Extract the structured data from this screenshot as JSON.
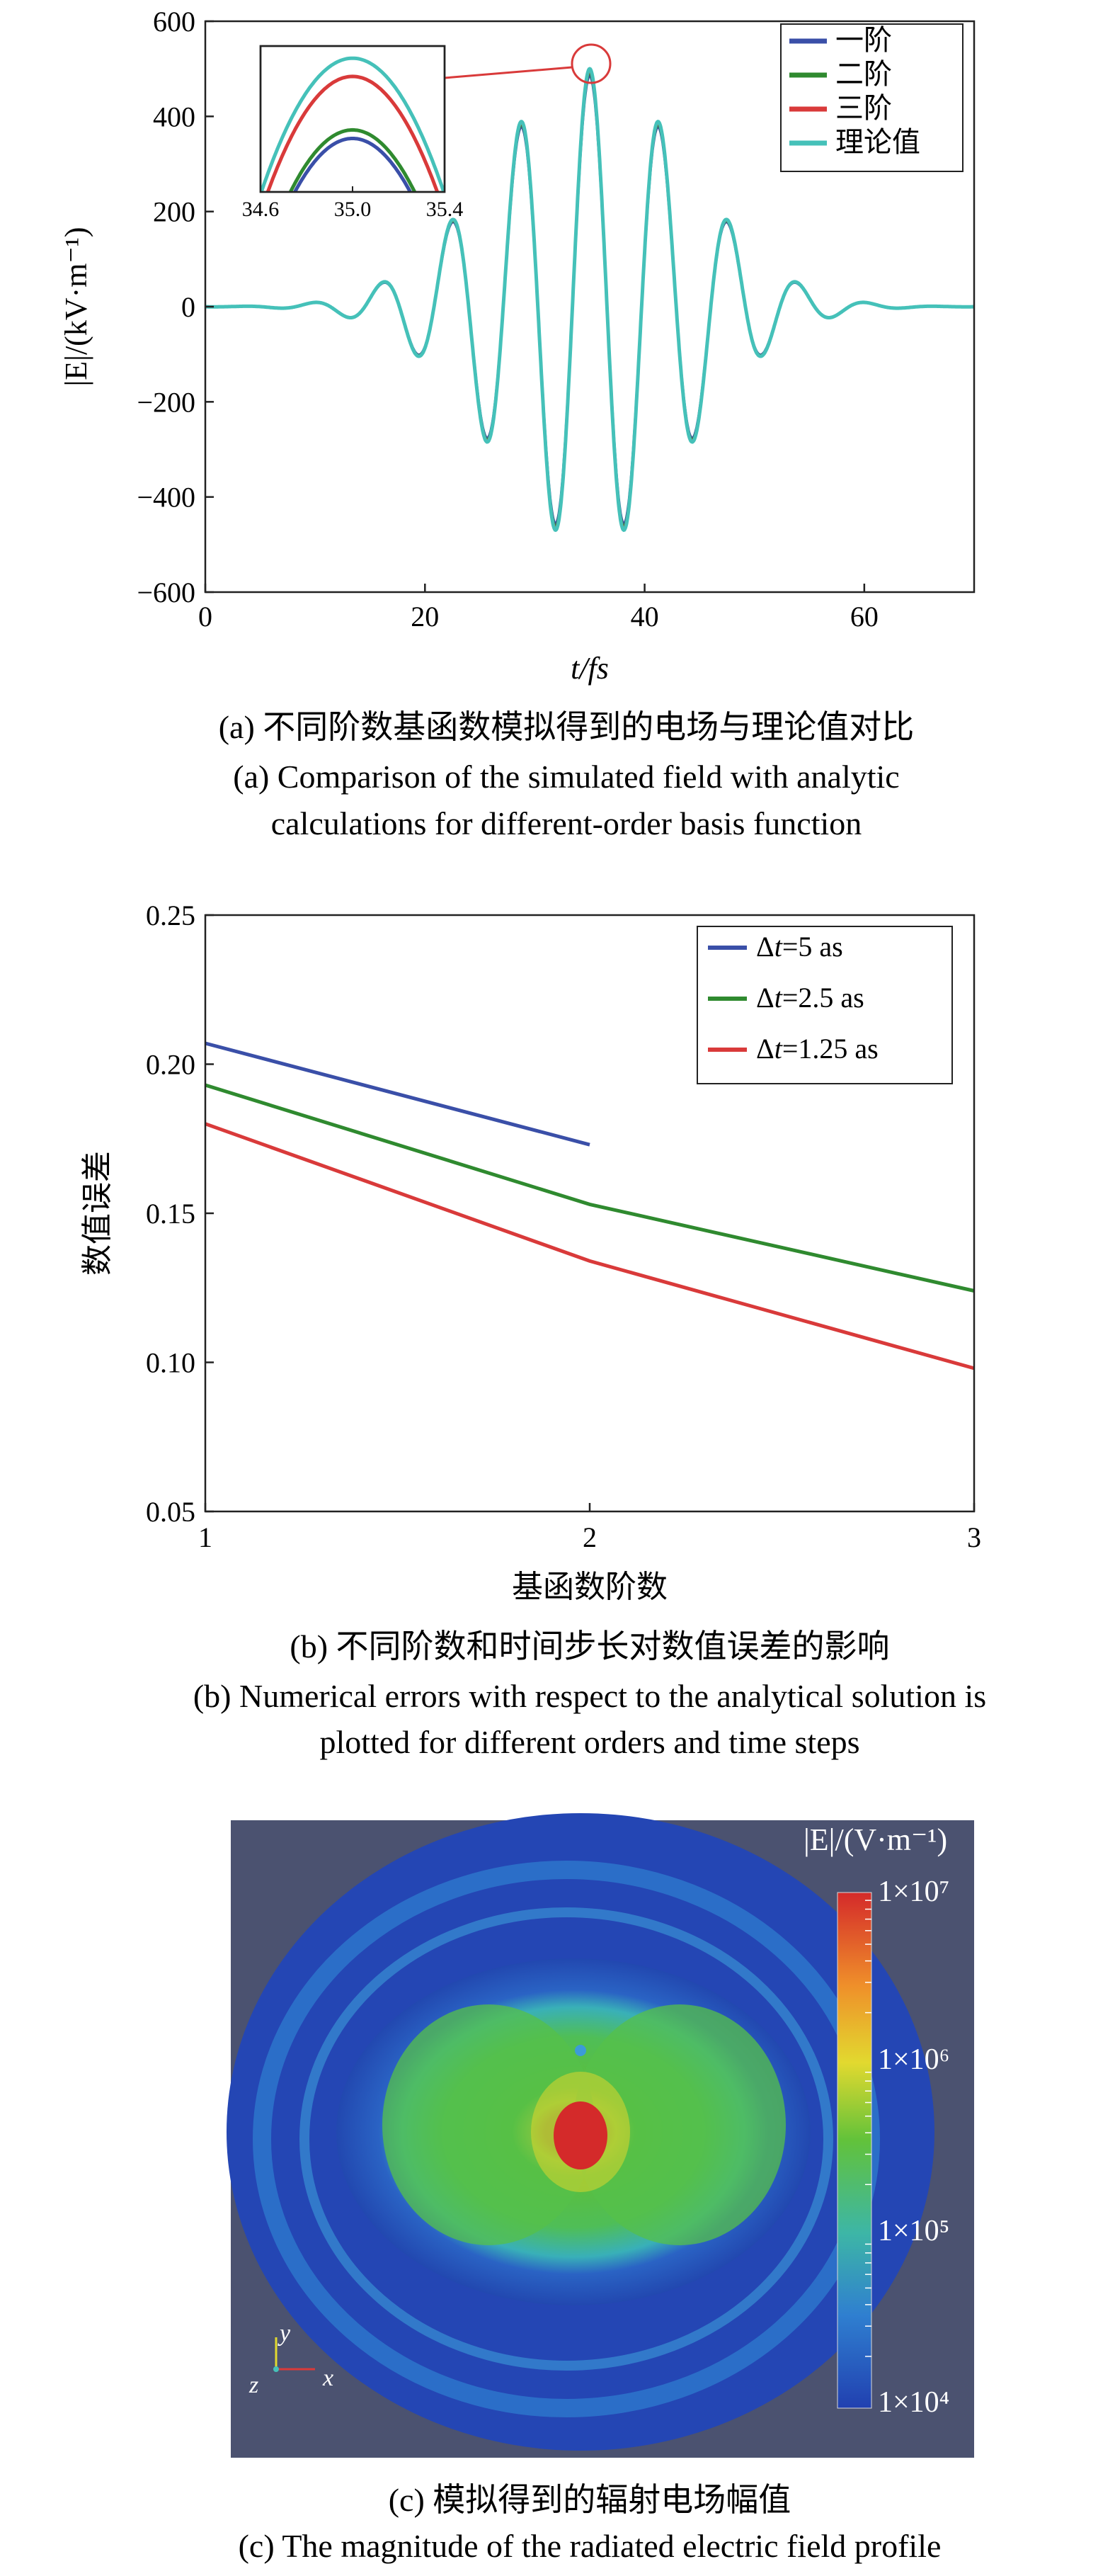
{
  "chart_data": [
    {
      "type": "line",
      "title": "",
      "xlabel": "t/fs",
      "ylabel": "|E|/(kV·m⁻¹)",
      "xlim": [
        0,
        70
      ],
      "ylim": [
        -600,
        600
      ],
      "xticks": [
        "0",
        "20",
        "40",
        "60"
      ],
      "yticks": [
        "600",
        "400",
        "200",
        "0",
        "−200",
        "−400",
        "−600"
      ],
      "legend_position": "top-right",
      "pulse": {
        "center_fs": 35.0,
        "period_fs": 6.3,
        "amplitude": 500,
        "width_fs": 12.5
      },
      "series": [
        {
          "name": "一阶",
          "color": "#3a4fa8",
          "peak_at_35": 388
        },
        {
          "name": "二阶",
          "color": "#2f8a2f",
          "peak_at_35": 402
        },
        {
          "name": "三阶",
          "color": "#d93a3a",
          "peak_at_35": 490
        },
        {
          "name": "理论值",
          "color": "#45c1b9",
          "peak_at_35": 520
        }
      ],
      "inset": {
        "xlim": [
          34.6,
          35.4
        ],
        "xticks": [
          "34.6",
          "35.0",
          "35.4"
        ]
      },
      "caption_cn": "(a) 不同阶数基函数模拟得到的电场与理论值对比",
      "caption_en_1": "(a) Comparison of the simulated field with analytic",
      "caption_en_2": "calculations for different-order basis function"
    },
    {
      "type": "line",
      "title": "",
      "xlabel": "基函数阶数",
      "ylabel": "数值误差",
      "xlim": [
        1,
        3
      ],
      "ylim": [
        0.05,
        0.25
      ],
      "xticks": [
        "1",
        "2",
        "3"
      ],
      "yticks": [
        "0.25",
        "0.20",
        "0.15",
        "0.10",
        "0.05"
      ],
      "legend_position": "top-right",
      "series": [
        {
          "name_prefix": "Δ",
          "name_var": "t",
          "name_suffix": "=5 as",
          "color": "#3a4fa8",
          "x": [
            1,
            2
          ],
          "y": [
            0.207,
            0.173
          ]
        },
        {
          "name_prefix": "Δ",
          "name_var": "t",
          "name_suffix": "=2.5 as",
          "color": "#2f8a2f",
          "x": [
            1,
            2,
            3
          ],
          "y": [
            0.193,
            0.153,
            0.124
          ]
        },
        {
          "name_prefix": "Δ",
          "name_var": "t",
          "name_suffix": "=1.25 as",
          "color": "#d93a3a",
          "x": [
            1,
            2,
            3
          ],
          "y": [
            0.18,
            0.134,
            0.098
          ]
        }
      ],
      "caption_cn": "(b) 不同阶数和时间步长对数值误差的影响",
      "caption_en_1": "(b) Numerical errors with respect to the analytical solution is",
      "caption_en_2": "plotted for different orders and time steps"
    },
    {
      "type": "heatmap",
      "colorbar_title": "|E|/(V·m⁻¹)",
      "colorbar_scale": "log",
      "colorbar_range": [
        10000,
        10000000
      ],
      "colorbar_ticks": [
        "1×10⁷",
        "1×10⁶",
        "1×10⁵",
        "1×10⁴"
      ],
      "axes_triad": [
        "y",
        "z",
        "x"
      ],
      "caption_cn": "(c) 模拟得到的辐射电场幅值",
      "caption_en": "(c) The magnitude of the radiated electric field profile"
    }
  ]
}
